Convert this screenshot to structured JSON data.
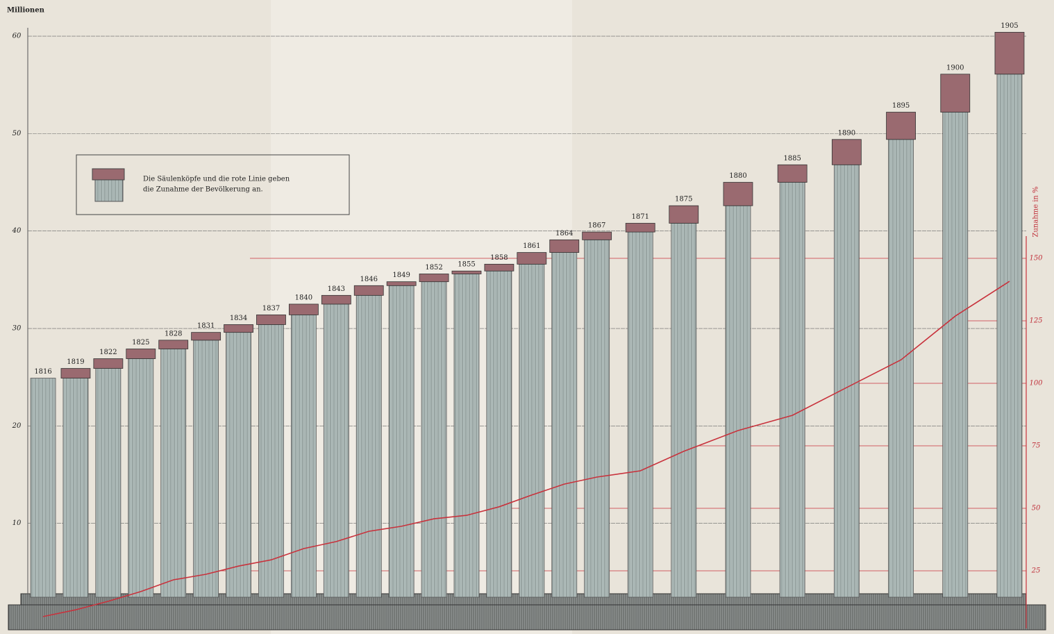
{
  "chart_data": {
    "type": "column-line",
    "ylabel": "Millionen",
    "y2label": "Zunahme in %",
    "legend_text": [
      "Die Säulenköpfe und die rote Linie geben",
      "die Zunahme der Bevölkerung an."
    ],
    "x": [
      1816,
      1819,
      1822,
      1825,
      1828,
      1831,
      1834,
      1837,
      1840,
      1843,
      1846,
      1849,
      1852,
      1855,
      1858,
      1861,
      1864,
      1867,
      1871,
      1875,
      1880,
      1885,
      1890,
      1895,
      1900,
      1905
    ],
    "xlim": [
      1815,
      1906
    ],
    "ylim": [
      0,
      62
    ],
    "yticks": [
      10,
      20,
      30,
      40,
      50,
      60
    ],
    "y2lim": [
      0,
      160
    ],
    "y2ticks": [
      25,
      50,
      75,
      100,
      125,
      150
    ],
    "series": [
      {
        "color": "#a9b7b5",
        "cap_color": "#9a6a70",
        "values": [
          24.9,
          25.9,
          26.9,
          27.9,
          28.8,
          29.6,
          30.4,
          31.4,
          32.5,
          33.4,
          34.4,
          34.8,
          35.6,
          35.9,
          36.6,
          37.8,
          39.1,
          39.9,
          40.8,
          42.6,
          45.0,
          46.8,
          49.4,
          52.2,
          56.1,
          60.4
        ]
      },
      {
        "axis": "y2",
        "color": "#c8323c",
        "values": [
          6.7,
          9.4,
          12.8,
          16.7,
          21.4,
          23.6,
          26.9,
          29.4,
          33.9,
          36.7,
          40.8,
          42.8,
          45.8,
          47.2,
          50.6,
          55.3,
          59.7,
          62.5,
          65.0,
          72.8,
          81.1,
          87.2,
          98.3,
          109.4,
          126.9,
          140.8
        ]
      }
    ],
    "grid": true
  }
}
